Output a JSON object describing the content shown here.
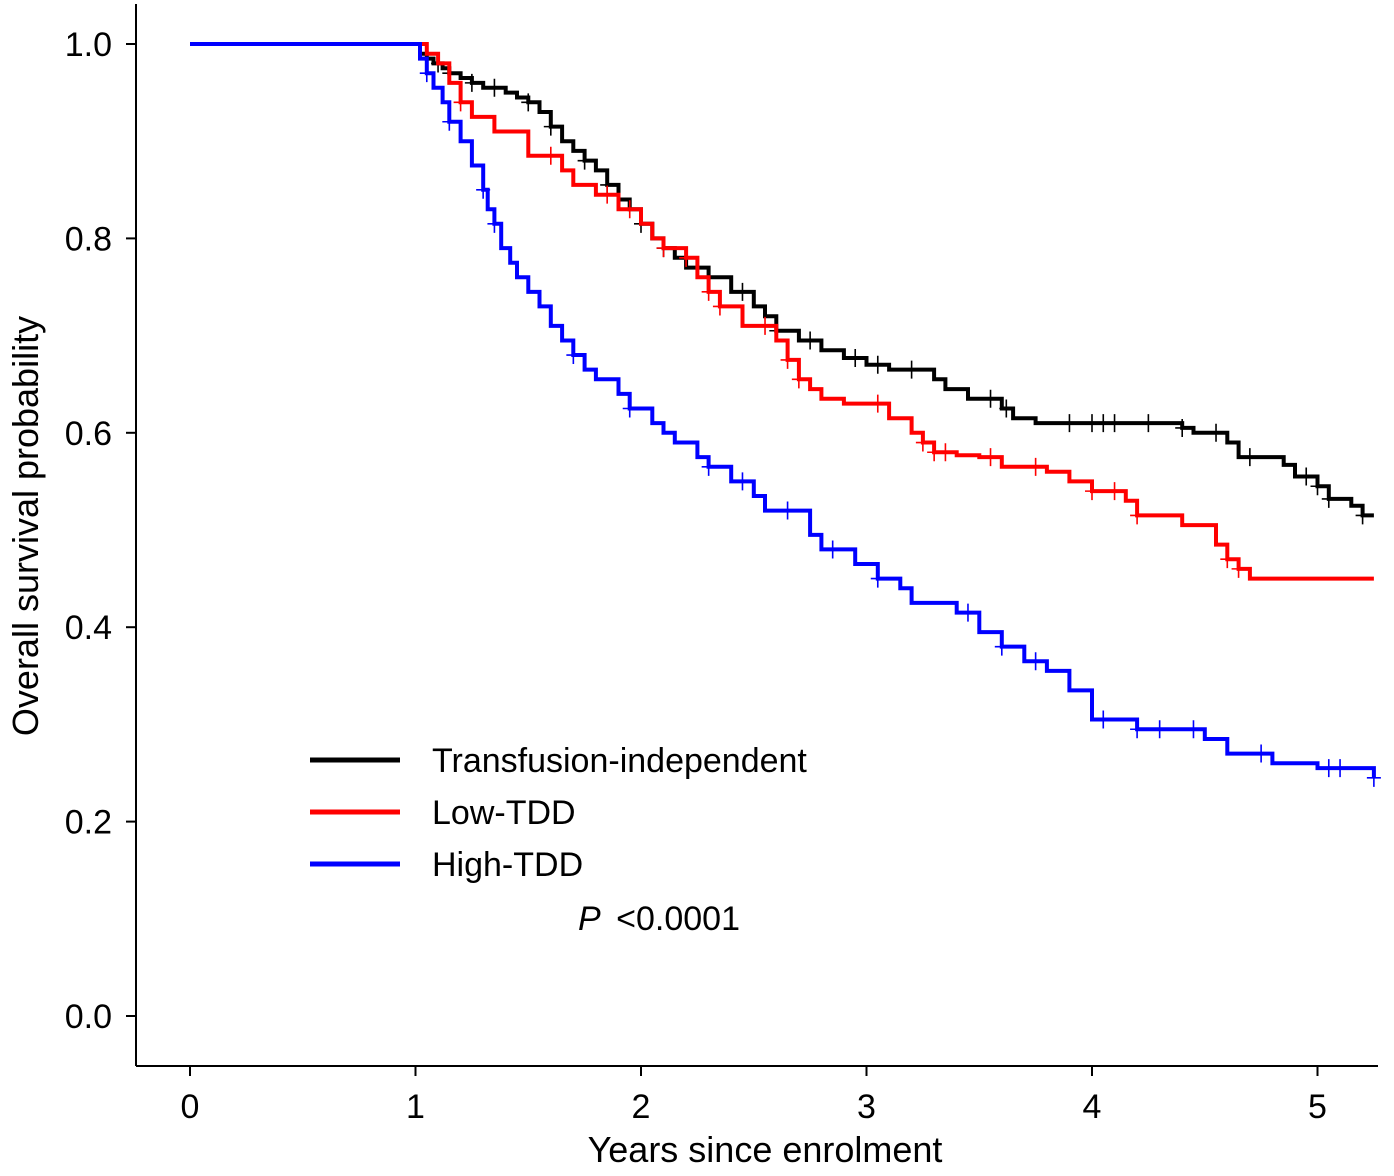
{
  "chart_data": {
    "type": "line",
    "subtype": "kaplan-meier",
    "title": "",
    "xlabel": "Years since enrolment",
    "ylabel": "Overall survival probability",
    "xlim": [
      -0.25,
      5.25
    ],
    "ylim": [
      -0.05,
      1.04
    ],
    "x_ticks": [
      0,
      1,
      2,
      3,
      4,
      5
    ],
    "x_tick_labels": [
      "0",
      "1",
      "2",
      "3",
      "4",
      "5"
    ],
    "y_ticks": [
      0.0,
      0.2,
      0.4,
      0.6,
      0.8,
      1.0
    ],
    "y_tick_labels": [
      "0.0",
      "0.2",
      "0.4",
      "0.6",
      "0.8",
      "1.0"
    ],
    "grid": false,
    "legend_position": "bottom-left",
    "annotation": {
      "italic": "P",
      "text": "<0.0001"
    },
    "series": [
      {
        "name": "Transfusion-independent",
        "color": "#000000",
        "x": [
          0,
          1.0,
          1.02,
          1.05,
          1.08,
          1.12,
          1.15,
          1.2,
          1.25,
          1.3,
          1.4,
          1.45,
          1.5,
          1.55,
          1.6,
          1.65,
          1.7,
          1.75,
          1.8,
          1.85,
          1.9,
          1.95,
          2.0,
          2.05,
          2.1,
          2.15,
          2.2,
          2.3,
          2.4,
          2.5,
          2.55,
          2.6,
          2.7,
          2.8,
          2.9,
          3.0,
          3.1,
          3.3,
          3.35,
          3.45,
          3.6,
          3.65,
          3.75,
          4.05,
          4.4,
          4.45,
          4.6,
          4.65,
          4.85,
          4.9,
          5.0,
          5.05,
          5.15,
          5.2,
          5.25
        ],
        "y": [
          1.0,
          1.0,
          0.99,
          0.985,
          0.98,
          0.975,
          0.97,
          0.965,
          0.96,
          0.955,
          0.95,
          0.945,
          0.94,
          0.93,
          0.915,
          0.9,
          0.89,
          0.88,
          0.87,
          0.855,
          0.84,
          0.83,
          0.815,
          0.8,
          0.79,
          0.78,
          0.77,
          0.76,
          0.745,
          0.73,
          0.72,
          0.705,
          0.695,
          0.685,
          0.677,
          0.67,
          0.665,
          0.655,
          0.645,
          0.635,
          0.625,
          0.615,
          0.61,
          0.61,
          0.605,
          0.6,
          0.59,
          0.575,
          0.567,
          0.555,
          0.545,
          0.532,
          0.525,
          0.515,
          0.515
        ],
        "censor_x": [
          1.05,
          1.1,
          1.15,
          1.25,
          1.35,
          1.5,
          1.6,
          1.75,
          1.85,
          2.0,
          2.1,
          2.25,
          2.45,
          2.6,
          2.75,
          2.95,
          3.05,
          3.2,
          3.55,
          3.62,
          3.9,
          4.0,
          4.05,
          4.1,
          4.25,
          4.4,
          4.55,
          4.7,
          4.95,
          5.0,
          5.05,
          5.2
        ]
      },
      {
        "name": "Low-TDD",
        "color": "#ff0000",
        "x": [
          0,
          1.0,
          1.05,
          1.1,
          1.15,
          1.2,
          1.25,
          1.35,
          1.5,
          1.65,
          1.7,
          1.8,
          1.9,
          2.0,
          2.05,
          2.1,
          2.2,
          2.25,
          2.3,
          2.35,
          2.45,
          2.6,
          2.65,
          2.7,
          2.75,
          2.8,
          2.9,
          3.1,
          3.2,
          3.25,
          3.3,
          3.4,
          3.5,
          3.6,
          3.8,
          3.9,
          4.0,
          4.15,
          4.2,
          4.4,
          4.55,
          4.6,
          4.65,
          4.7,
          5.25
        ],
        "y": [
          1.0,
          1.0,
          0.99,
          0.98,
          0.96,
          0.94,
          0.925,
          0.91,
          0.885,
          0.87,
          0.855,
          0.845,
          0.83,
          0.815,
          0.8,
          0.79,
          0.78,
          0.76,
          0.745,
          0.73,
          0.71,
          0.695,
          0.675,
          0.655,
          0.645,
          0.635,
          0.63,
          0.615,
          0.6,
          0.59,
          0.58,
          0.577,
          0.575,
          0.565,
          0.56,
          0.55,
          0.54,
          0.53,
          0.515,
          0.505,
          0.485,
          0.47,
          0.46,
          0.45,
          0.45
        ],
        "censor_x": [
          1.2,
          1.6,
          1.85,
          1.95,
          2.1,
          2.2,
          2.3,
          2.35,
          2.55,
          2.65,
          2.7,
          3.05,
          3.25,
          3.3,
          3.35,
          3.55,
          3.75,
          4.0,
          4.1,
          4.2,
          4.6,
          4.65
        ]
      },
      {
        "name": "High-TDD",
        "color": "#0000ff",
        "x": [
          0,
          1.0,
          1.02,
          1.05,
          1.08,
          1.12,
          1.15,
          1.2,
          1.25,
          1.3,
          1.32,
          1.35,
          1.38,
          1.42,
          1.45,
          1.5,
          1.55,
          1.6,
          1.65,
          1.7,
          1.75,
          1.8,
          1.9,
          1.95,
          2.05,
          2.1,
          2.15,
          2.25,
          2.3,
          2.4,
          2.5,
          2.55,
          2.75,
          2.8,
          2.95,
          3.05,
          3.15,
          3.2,
          3.4,
          3.5,
          3.6,
          3.7,
          3.8,
          3.9,
          4.0,
          4.2,
          4.5,
          4.6,
          4.8,
          5.0,
          5.25
        ],
        "y": [
          1.0,
          1.0,
          0.985,
          0.97,
          0.955,
          0.94,
          0.92,
          0.9,
          0.875,
          0.85,
          0.83,
          0.815,
          0.79,
          0.775,
          0.76,
          0.745,
          0.73,
          0.71,
          0.695,
          0.68,
          0.665,
          0.655,
          0.64,
          0.625,
          0.61,
          0.6,
          0.59,
          0.575,
          0.565,
          0.55,
          0.535,
          0.52,
          0.495,
          0.48,
          0.465,
          0.45,
          0.44,
          0.425,
          0.415,
          0.395,
          0.38,
          0.365,
          0.355,
          0.335,
          0.305,
          0.295,
          0.285,
          0.27,
          0.26,
          0.255,
          0.245
        ],
        "censor_x": [
          1.05,
          1.15,
          1.3,
          1.35,
          1.7,
          1.95,
          2.3,
          2.45,
          2.65,
          2.85,
          3.05,
          3.45,
          3.6,
          3.75,
          4.05,
          4.2,
          4.3,
          4.45,
          4.75,
          5.05,
          5.1,
          5.25
        ]
      }
    ]
  }
}
